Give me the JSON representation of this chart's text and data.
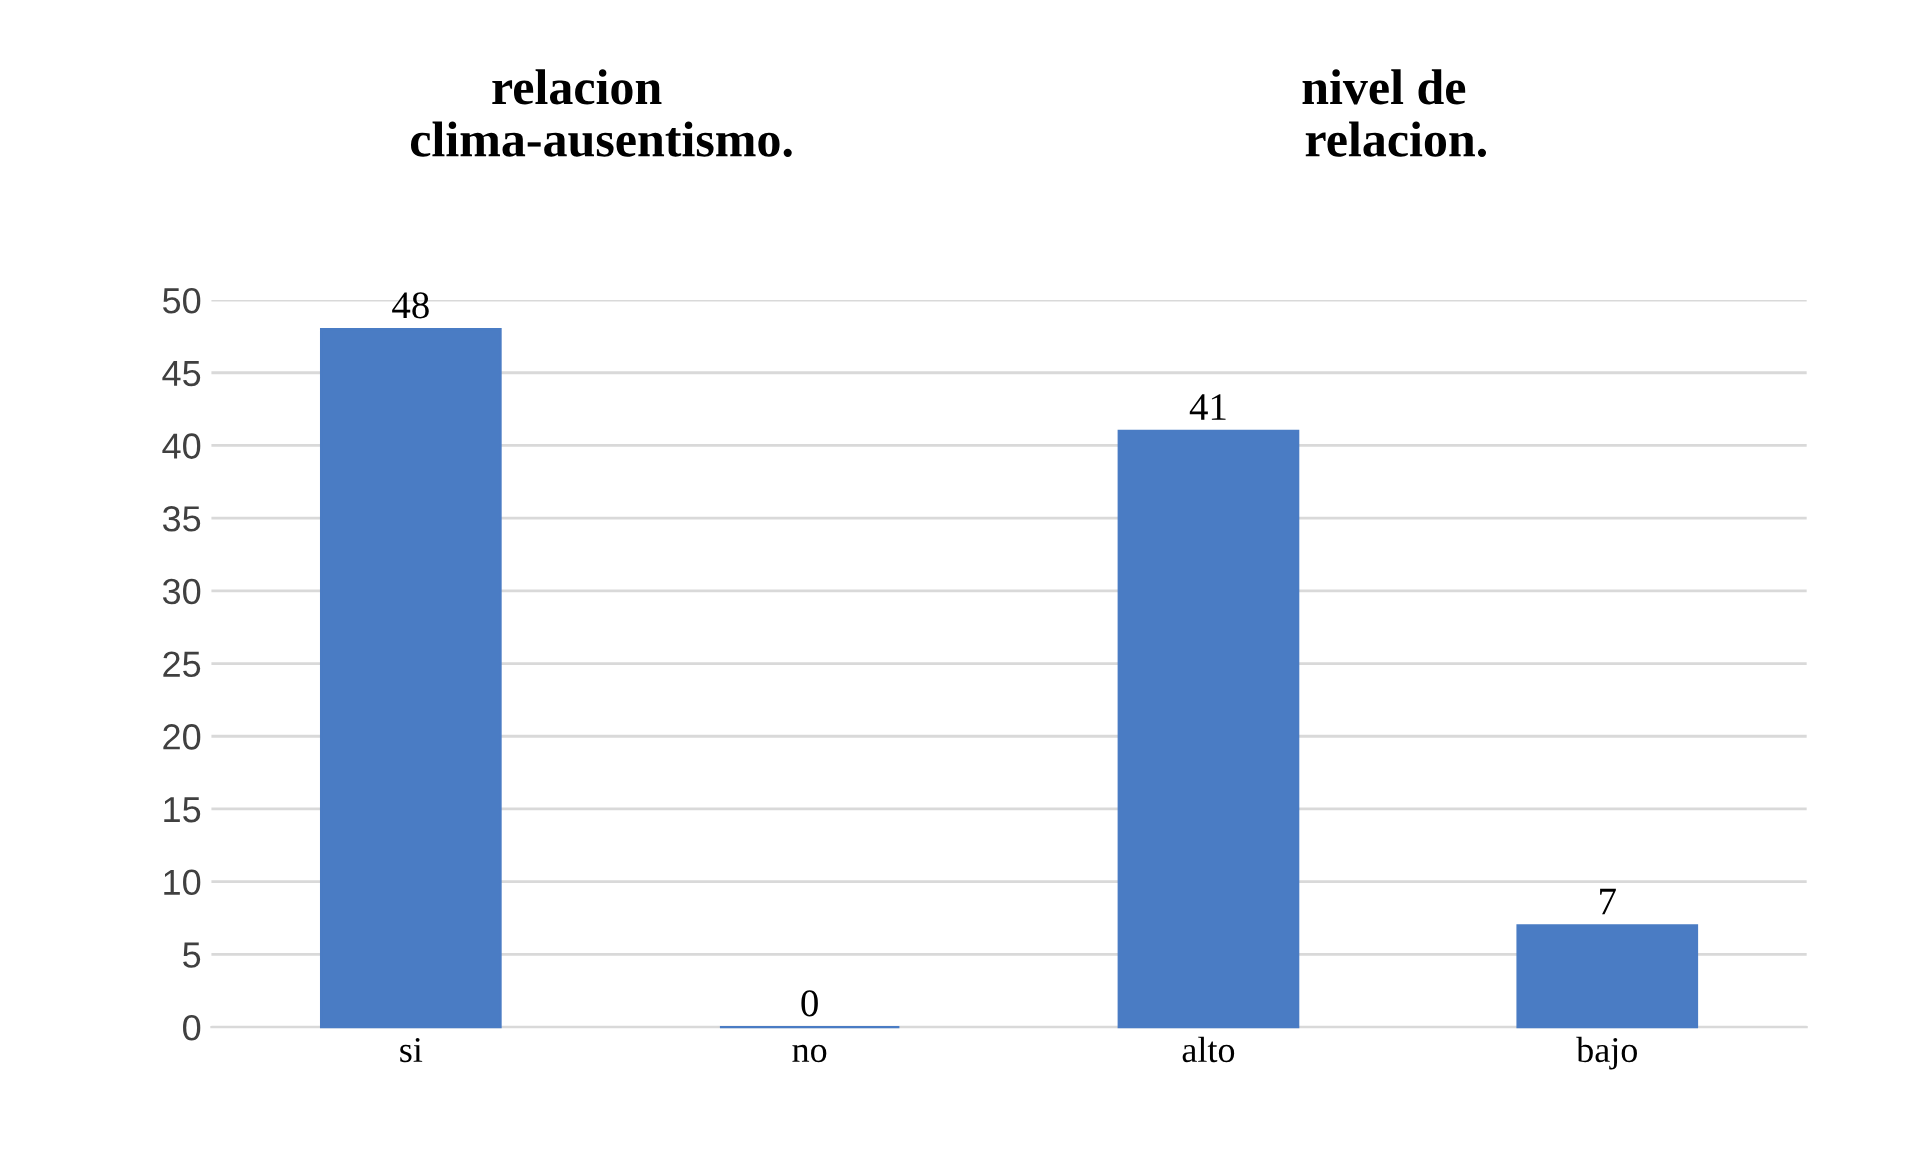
{
  "chart_data": {
    "type": "bar",
    "categories": [
      "si",
      "no",
      "alto",
      "bajo"
    ],
    "values": [
      48,
      0,
      41,
      7
    ],
    "color": "#4a7cc4",
    "ylim": [
      0,
      50
    ],
    "yticks": [
      0,
      5,
      10,
      15,
      20,
      25,
      30,
      35,
      40,
      45,
      50
    ],
    "grid": "y",
    "data_labels": true,
    "annotations": [
      "relacion\n    clima-ausentismo.",
      "nivel de\n  relacion."
    ]
  }
}
